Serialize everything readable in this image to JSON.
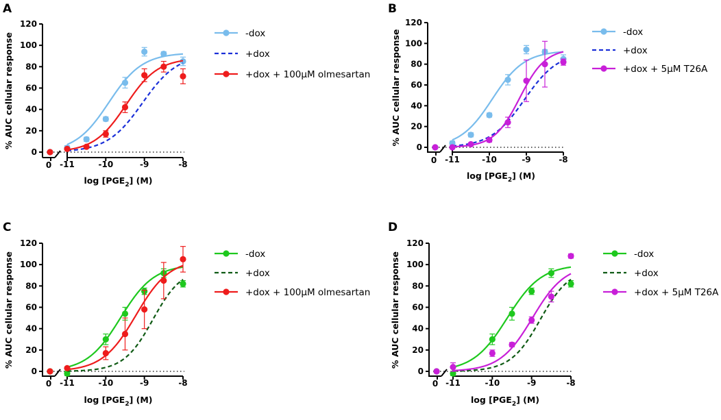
{
  "chart_data": [
    {
      "panel": "A",
      "type": "scatter",
      "xlabel": "log [PGE2] (M)",
      "ylabel": "% AUC cellular response",
      "xlim": [
        -11,
        -8
      ],
      "ylim": [
        0,
        120
      ],
      "yticks": [
        "0",
        "20",
        "40",
        "60",
        "80",
        "100",
        "120"
      ],
      "xticks": [
        "-11",
        "-10",
        "-9",
        "-8"
      ],
      "zero_label": "0",
      "baseline": 0,
      "legend_position": "right",
      "series": [
        {
          "name": "-dox",
          "color": "#79bcec",
          "style": "solid",
          "marker": true,
          "zero_value": 0,
          "x": [
            -11,
            -10.5,
            -10,
            -9.5,
            -9,
            -8.5,
            -8
          ],
          "y": [
            4,
            12,
            31,
            65,
            94,
            92,
            85
          ],
          "err": [
            2,
            2,
            2,
            5,
            4,
            2,
            4
          ],
          "fit": {
            "bottom": 0,
            "top": 93,
            "logec50": -9.92,
            "hill": 1.0
          }
        },
        {
          "name": "+dox",
          "color": "#1a2fd8",
          "style": "dashed",
          "marker": false,
          "fit": {
            "bottom": 0,
            "top": 92,
            "logec50": -9.05,
            "hill": 0.95
          }
        },
        {
          "name": "+dox + 100μM olmesartan",
          "color": "#ee1c1c",
          "style": "solid",
          "marker": true,
          "zero_value": 0,
          "x": [
            -11,
            -10.5,
            -10,
            -9.5,
            -9,
            -8.5,
            -8
          ],
          "y": [
            3,
            5,
            17,
            42,
            72,
            80,
            71
          ],
          "err": [
            1,
            1,
            3,
            5,
            6,
            5,
            7
          ],
          "fit": {
            "bottom": 0,
            "top": 88,
            "logec50": -9.48,
            "hill": 1.05
          }
        }
      ]
    },
    {
      "panel": "B",
      "type": "scatter",
      "xlabel": "log [PGE2] (M)",
      "ylabel": "% AUC cellular response",
      "xlim": [
        -11,
        -8
      ],
      "ylim": [
        0,
        120
      ],
      "yticks": [
        "0",
        "20",
        "40",
        "60",
        "80",
        "100",
        "120"
      ],
      "xticks": [
        "-11",
        "-10",
        "-9",
        "-8"
      ],
      "zero_label": "0",
      "baseline": 0,
      "legend_position": "right",
      "series": [
        {
          "name": "-dox",
          "color": "#79bcec",
          "style": "solid",
          "marker": true,
          "zero_value": 0,
          "x": [
            -11,
            -10.5,
            -10,
            -9.5,
            -9,
            -8.5,
            -8
          ],
          "y": [
            4,
            12,
            31,
            65,
            94,
            92,
            85
          ],
          "err": [
            2,
            2,
            2,
            5,
            4,
            2,
            4
          ],
          "fit": {
            "bottom": 0,
            "top": 93,
            "logec50": -9.92,
            "hill": 1.0
          }
        },
        {
          "name": "+dox",
          "color": "#1a2fd8",
          "style": "dashed",
          "marker": false,
          "fit": {
            "bottom": 0,
            "top": 92,
            "logec50": -9.05,
            "hill": 0.95
          }
        },
        {
          "name": "+dox + 5μM T26A",
          "color": "#c81fd8",
          "style": "solid",
          "marker": true,
          "zero_value": 0,
          "x": [
            -11,
            -10.5,
            -10,
            -9.5,
            -9,
            -8.5,
            -8
          ],
          "y": [
            0,
            3,
            7,
            24,
            64,
            80,
            82
          ],
          "err": [
            1,
            1,
            2,
            5,
            20,
            22,
            3
          ],
          "fit": {
            "bottom": 0,
            "top": 95,
            "logec50": -9.18,
            "hill": 1.25
          }
        }
      ]
    },
    {
      "panel": "C",
      "type": "scatter",
      "xlabel": "log [PGE2] (M)",
      "ylabel": "% AUC cellular response",
      "xlim": [
        -11,
        -8
      ],
      "ylim": [
        0,
        120
      ],
      "yticks": [
        "0",
        "20",
        "40",
        "60",
        "80",
        "100",
        "120"
      ],
      "xticks": [
        "-11",
        "-10",
        "-9",
        "-8"
      ],
      "zero_label": "0",
      "baseline": 0,
      "legend_position": "right",
      "series": [
        {
          "name": "-dox",
          "color": "#1ec81e",
          "style": "solid",
          "marker": true,
          "zero_value": 0,
          "x": [
            -11,
            -10,
            -9.5,
            -9,
            -8.5,
            -8
          ],
          "y": [
            -2,
            30,
            54,
            75,
            92,
            82
          ],
          "err": [
            2,
            5,
            6,
            3,
            4,
            3
          ],
          "fit": {
            "bottom": 0,
            "top": 100,
            "logec50": -9.62,
            "hill": 1.0
          }
        },
        {
          "name": "+dox",
          "color": "#0f5a14",
          "style": "dashed",
          "marker": false,
          "fit": {
            "bottom": 0,
            "top": 97,
            "logec50": -8.78,
            "hill": 1.15
          }
        },
        {
          "name": "+dox + 100μM olmesartan",
          "color": "#ee1c1c",
          "style": "solid",
          "marker": true,
          "zero_value": 0,
          "x": [
            -11,
            -10,
            -9.5,
            -9,
            -8.5,
            -8
          ],
          "y": [
            3,
            17,
            35,
            58,
            85,
            105
          ],
          "err": [
            1,
            6,
            15,
            18,
            17,
            12
          ],
          "fit": {
            "bottom": 0,
            "top": 105,
            "logec50": -9.22,
            "hill": 1.0
          }
        }
      ]
    },
    {
      "panel": "D",
      "type": "scatter",
      "xlabel": "log [PGE2] (M)",
      "ylabel": "% AUC cellular response",
      "xlim": [
        -11,
        -8
      ],
      "ylim": [
        0,
        120
      ],
      "yticks": [
        "0",
        "20",
        "40",
        "60",
        "80",
        "100",
        "120"
      ],
      "xticks": [
        "-11",
        "-10",
        "-9",
        "-8"
      ],
      "zero_label": "0",
      "baseline": 0,
      "legend_position": "right",
      "series": [
        {
          "name": "-dox",
          "color": "#1ec81e",
          "style": "solid",
          "marker": true,
          "zero_value": 0,
          "x": [
            -11,
            -10,
            -9.5,
            -9,
            -8.5,
            -8
          ],
          "y": [
            -2,
            30,
            54,
            75,
            92,
            82
          ],
          "err": [
            2,
            5,
            6,
            3,
            4,
            3
          ],
          "fit": {
            "bottom": 0,
            "top": 100,
            "logec50": -9.62,
            "hill": 1.0
          }
        },
        {
          "name": "+dox",
          "color": "#0f5a14",
          "style": "dashed",
          "marker": false,
          "fit": {
            "bottom": 0,
            "top": 97,
            "logec50": -8.78,
            "hill": 1.15
          }
        },
        {
          "name": "+dox + 5μM T26A",
          "color": "#c81fd8",
          "style": "solid",
          "marker": true,
          "zero_value": 0,
          "x": [
            -11,
            -10,
            -9.5,
            -9,
            -8.5,
            -8
          ],
          "y": [
            4,
            17,
            25,
            48,
            70,
            108
          ],
          "err": [
            4,
            3,
            2,
            3,
            5,
            2
          ],
          "fit": {
            "bottom": 0,
            "top": 100,
            "logec50": -8.98,
            "hill": 1.05
          }
        }
      ]
    }
  ]
}
